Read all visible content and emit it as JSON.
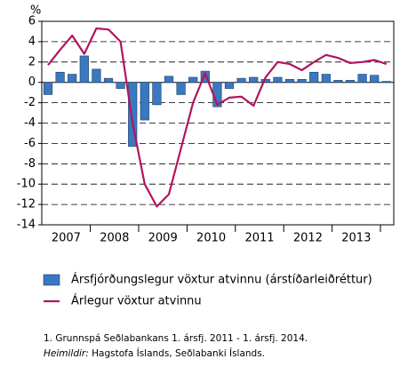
{
  "chart_data": {
    "type": "bar_line",
    "y_unit": "%",
    "categories": [
      "2007",
      null,
      null,
      null,
      "2008",
      null,
      null,
      null,
      "2009",
      null,
      null,
      null,
      "2010",
      null,
      null,
      null,
      "2011",
      null,
      null,
      null,
      "2012",
      null,
      null,
      null,
      "2013",
      null,
      null,
      null,
      null
    ],
    "series": [
      {
        "name": "Ársfjórðungslegur vöxtur atvinnu (árstíðarleiðréttur)",
        "type": "bar",
        "color": "#3a78c0",
        "values": [
          -1.2,
          1.0,
          0.8,
          2.6,
          1.3,
          0.4,
          -0.6,
          -6.3,
          -3.7,
          -2.2,
          0.6,
          -1.2,
          0.5,
          1.1,
          -2.4,
          -0.6,
          0.4,
          0.5,
          0.3,
          0.5,
          0.3,
          0.3,
          1.0,
          0.8,
          0.2,
          0.2,
          0.8,
          0.7,
          0.1
        ]
      },
      {
        "name": "Árlegur vöxtur atvinnu",
        "type": "line",
        "color": "#b0155e",
        "values": [
          1.7,
          3.2,
          4.6,
          2.8,
          5.3,
          5.2,
          4.0,
          -4.0,
          -10.0,
          -12.2,
          -11.0,
          -6.5,
          -2.0,
          0.9,
          -2.2,
          -1.5,
          -1.4,
          -2.3,
          0.5,
          2.0,
          1.8,
          1.2,
          2.0,
          2.7,
          2.4,
          1.9,
          2.0,
          2.2,
          1.8
        ]
      }
    ],
    "ylim": [
      -14,
      6
    ],
    "yticks": [
      6,
      4,
      2,
      0,
      -2,
      -4,
      -6,
      -8,
      -10,
      -12,
      -14
    ],
    "grid": true,
    "legend": "bottom",
    "footnote": "1. Grunnspá Seðlabankans 1. ársfj. 2011 - 1. ársfj. 2014.",
    "source_label": "Heimildir:",
    "source": " Hagstofa Íslands, Seðlabanki Íslands."
  }
}
